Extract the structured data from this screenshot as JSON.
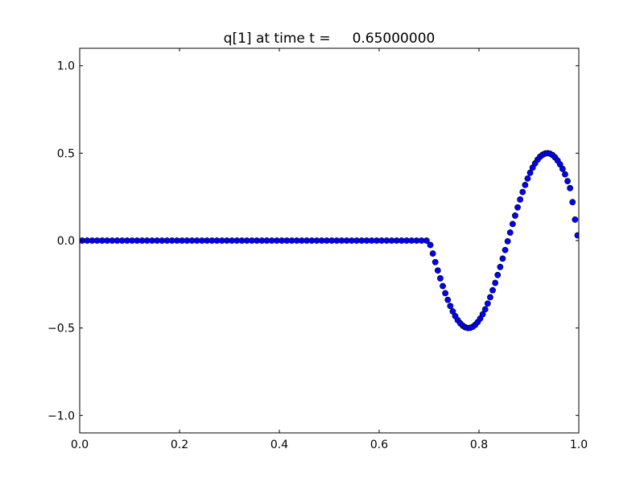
{
  "chart_data": {
    "type": "scatter",
    "title": "q[1] at time t =     0.65000000",
    "xlabel": "",
    "ylabel": "",
    "xlim": [
      0.0,
      1.0
    ],
    "ylim": [
      -1.1,
      1.1
    ],
    "xticks": [
      "0.0",
      "0.2",
      "0.4",
      "0.6",
      "0.8",
      "1.0"
    ],
    "yticks": [
      "−1.0",
      "−0.5",
      "0.0",
      "0.5",
      "1.0"
    ],
    "xtick_values": [
      0.0,
      0.2,
      0.4,
      0.6,
      0.8,
      1.0
    ],
    "ytick_values": [
      -1.0,
      -0.5,
      0.0,
      0.5,
      1.0
    ],
    "grid": false,
    "marker_color": "#0000ff",
    "marker_edge": "#000000",
    "series": [
      {
        "x": [
          0.005,
          0.015,
          0.025,
          0.035,
          0.045,
          0.055,
          0.065,
          0.075,
          0.085,
          0.095,
          0.105,
          0.115,
          0.125,
          0.135,
          0.145,
          0.155,
          0.165,
          0.175,
          0.185,
          0.195,
          0.205,
          0.215,
          0.225,
          0.235,
          0.245,
          0.255,
          0.265,
          0.275,
          0.285,
          0.295,
          0.305,
          0.315,
          0.325,
          0.335,
          0.345,
          0.355,
          0.365,
          0.375,
          0.385,
          0.395,
          0.405,
          0.415,
          0.425,
          0.435,
          0.445,
          0.455,
          0.465,
          0.475,
          0.485,
          0.495,
          0.505,
          0.515,
          0.525,
          0.535,
          0.545,
          0.555,
          0.565,
          0.575,
          0.585,
          0.595,
          0.605,
          0.615,
          0.625,
          0.635,
          0.645,
          0.655,
          0.665,
          0.675,
          0.685,
          0.695,
          0.7025,
          0.7075,
          0.7125,
          0.7175,
          0.7225,
          0.7275,
          0.7325,
          0.7375,
          0.7425,
          0.7475,
          0.7525,
          0.7575,
          0.7625,
          0.7675,
          0.7725,
          0.7775,
          0.7825,
          0.7875,
          0.7925,
          0.7975,
          0.8025,
          0.8075,
          0.8125,
          0.8175,
          0.8225,
          0.8275,
          0.8325,
          0.8375,
          0.8425,
          0.8475,
          0.8525,
          0.8575,
          0.8625,
          0.8675,
          0.8725,
          0.8775,
          0.8825,
          0.8875,
          0.8925,
          0.8975,
          0.9025,
          0.9075,
          0.9125,
          0.9175,
          0.9225,
          0.9275,
          0.9325,
          0.9375,
          0.9425,
          0.9475,
          0.9525,
          0.9575,
          0.9625,
          0.9675,
          0.9725,
          0.9775,
          0.9825,
          0.9875,
          0.9925,
          0.9975
        ],
        "y": [
          0,
          0,
          0,
          0,
          0,
          0,
          0,
          0,
          0,
          0,
          0,
          0,
          0,
          0,
          0,
          0,
          0,
          0,
          0,
          0,
          0,
          0,
          0,
          0,
          0,
          0,
          0,
          0,
          0,
          0,
          0,
          0,
          0,
          0,
          0,
          0,
          0,
          0,
          0,
          0,
          0,
          0,
          0,
          0,
          0,
          0,
          0,
          0,
          0,
          0,
          0,
          0,
          0,
          0,
          0,
          0,
          0,
          0,
          0,
          0,
          0,
          0,
          0,
          0,
          0,
          0,
          0,
          0,
          0,
          0,
          -0.025,
          -0.074,
          -0.123,
          -0.171,
          -0.216,
          -0.26,
          -0.301,
          -0.339,
          -0.374,
          -0.405,
          -0.432,
          -0.455,
          -0.473,
          -0.487,
          -0.496,
          -0.5,
          -0.499,
          -0.493,
          -0.482,
          -0.466,
          -0.446,
          -0.421,
          -0.393,
          -0.36,
          -0.324,
          -0.284,
          -0.242,
          -0.197,
          -0.151,
          -0.103,
          -0.054,
          -0.004,
          0.046,
          0.095,
          0.143,
          0.19,
          0.235,
          0.278,
          0.318,
          0.355,
          0.388,
          0.417,
          0.442,
          0.463,
          0.48,
          0.491,
          0.498,
          0.5,
          0.497,
          0.489,
          0.476,
          0.458,
          0.436,
          0.41,
          0.379,
          0.34,
          0.3,
          0.22,
          0.12,
          0.03
        ]
      }
    ]
  }
}
